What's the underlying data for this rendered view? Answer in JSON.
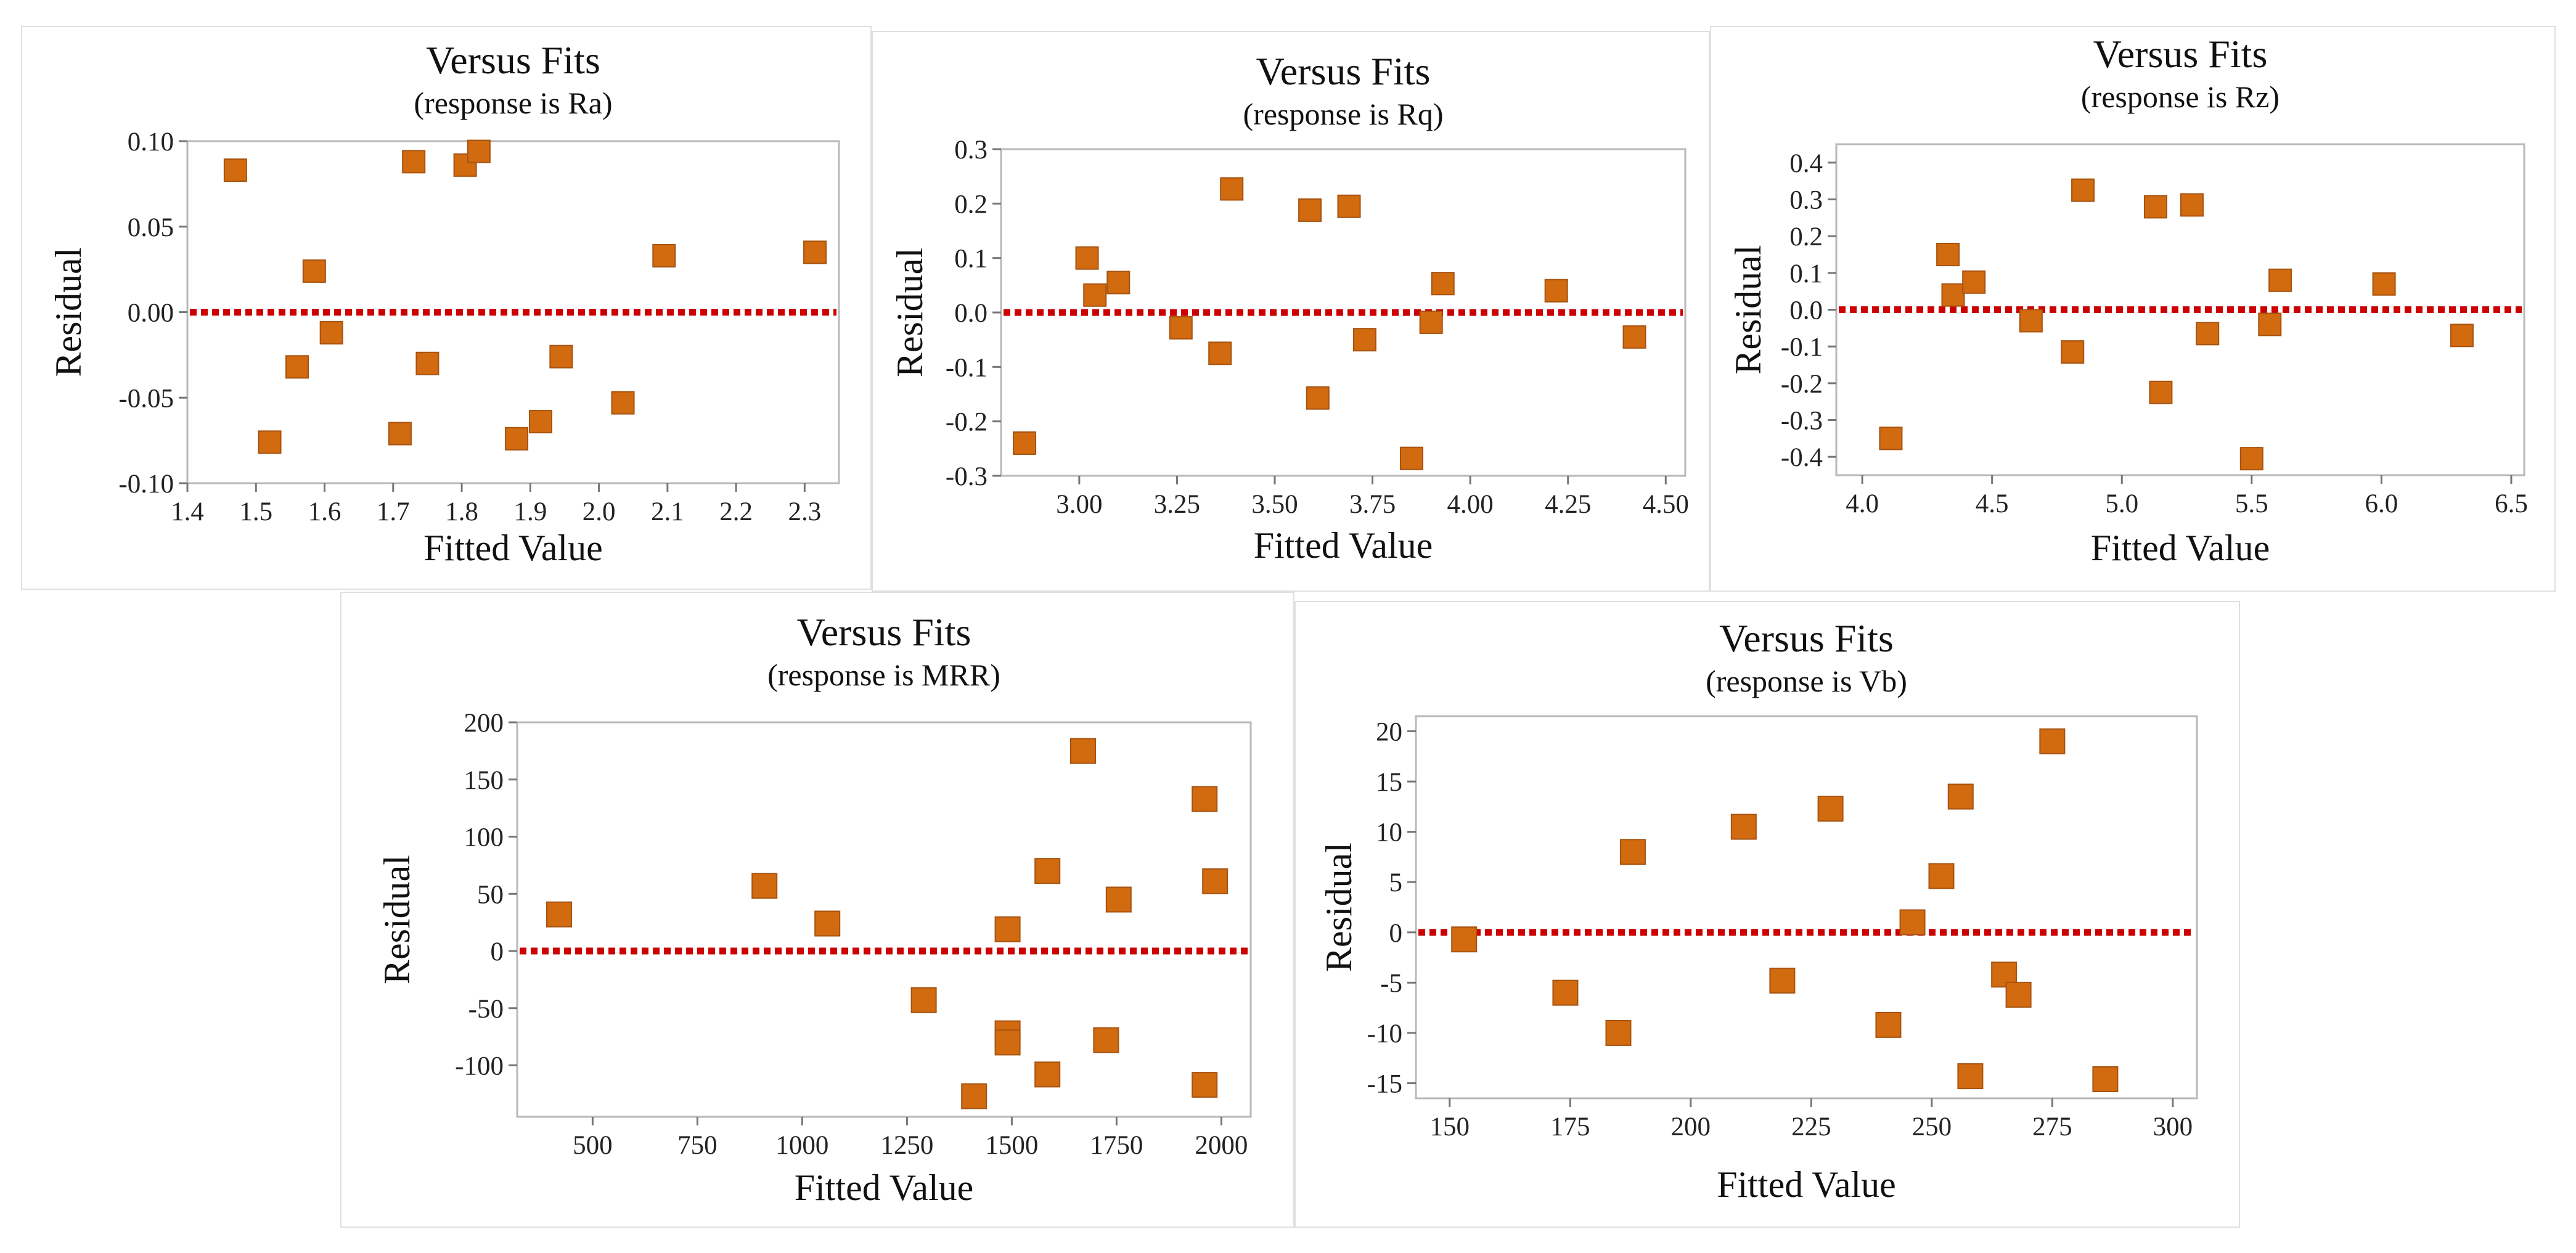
{
  "chart_data": [
    {
      "type": "scatter",
      "title": "Versus Fits",
      "subtitle": "(response is Ra)",
      "xlabel": "Fitted Value",
      "ylabel": "Residual",
      "xlim": [
        1.4,
        2.35
      ],
      "ylim": [
        -0.1,
        0.1
      ],
      "xticks": [
        "1.4",
        "1.5",
        "1.6",
        "1.7",
        "1.8",
        "1.9",
        "2.0",
        "2.1",
        "2.2",
        "2.3"
      ],
      "yticks": [
        "0.10",
        "0.05",
        "0.00",
        "-0.05",
        "-0.10"
      ],
      "reference_line_y": 0,
      "marker_color": "#d26a10",
      "reference_line_color": "#cc0000",
      "points": [
        {
          "x": 1.47,
          "y": 0.083
        },
        {
          "x": 1.52,
          "y": -0.076
        },
        {
          "x": 1.56,
          "y": -0.032
        },
        {
          "x": 1.585,
          "y": 0.024
        },
        {
          "x": 1.61,
          "y": -0.012
        },
        {
          "x": 1.71,
          "y": -0.071
        },
        {
          "x": 1.73,
          "y": 0.088
        },
        {
          "x": 1.75,
          "y": -0.03
        },
        {
          "x": 1.805,
          "y": 0.086
        },
        {
          "x": 1.825,
          "y": 0.094
        },
        {
          "x": 1.88,
          "y": -0.074
        },
        {
          "x": 1.915,
          "y": -0.064
        },
        {
          "x": 1.945,
          "y": -0.026
        },
        {
          "x": 2.035,
          "y": -0.053
        },
        {
          "x": 2.095,
          "y": 0.033
        },
        {
          "x": 2.315,
          "y": 0.035
        }
      ]
    },
    {
      "type": "scatter",
      "title": "Versus Fits",
      "subtitle": "(response is Rq)",
      "xlabel": "Fitted Value",
      "ylabel": "Residual",
      "xlim": [
        2.8,
        4.55
      ],
      "ylim": [
        -0.3,
        0.3
      ],
      "xticks": [
        "3.00",
        "3.25",
        "3.50",
        "3.75",
        "4.00",
        "4.25",
        "4.50"
      ],
      "yticks": [
        "0.3",
        "0.2",
        "0.1",
        "0.0",
        "-0.1",
        "-0.2",
        "-0.3"
      ],
      "reference_line_y": 0,
      "marker_color": "#d26a10",
      "reference_line_color": "#cc0000",
      "points": [
        {
          "x": 2.86,
          "y": -0.24
        },
        {
          "x": 3.02,
          "y": 0.1
        },
        {
          "x": 3.04,
          "y": 0.032
        },
        {
          "x": 3.1,
          "y": 0.055
        },
        {
          "x": 3.26,
          "y": -0.028
        },
        {
          "x": 3.36,
          "y": -0.075
        },
        {
          "x": 3.39,
          "y": 0.227
        },
        {
          "x": 3.59,
          "y": 0.188
        },
        {
          "x": 3.61,
          "y": -0.157
        },
        {
          "x": 3.69,
          "y": 0.195
        },
        {
          "x": 3.73,
          "y": -0.05
        },
        {
          "x": 3.85,
          "y": -0.268
        },
        {
          "x": 3.9,
          "y": -0.018
        },
        {
          "x": 3.93,
          "y": 0.053
        },
        {
          "x": 4.22,
          "y": 0.04
        },
        {
          "x": 4.42,
          "y": -0.045
        }
      ]
    },
    {
      "type": "scatter",
      "title": "Versus Fits",
      "subtitle": "(response is Rz)",
      "xlabel": "Fitted Value",
      "ylabel": "Residual",
      "xlim": [
        3.9,
        6.55
      ],
      "ylim": [
        -0.45,
        0.45
      ],
      "xticks": [
        "4.0",
        "4.5",
        "5.0",
        "5.5",
        "6.0",
        "6.5"
      ],
      "yticks": [
        "0.4",
        "0.3",
        "0.2",
        "0.1",
        "0.0",
        "-0.1",
        "-0.2",
        "-0.3",
        "-0.4"
      ],
      "reference_line_y": 0,
      "marker_color": "#d26a10",
      "reference_line_color": "#cc0000",
      "points": [
        {
          "x": 4.11,
          "y": -0.35
        },
        {
          "x": 4.33,
          "y": 0.15
        },
        {
          "x": 4.35,
          "y": 0.04
        },
        {
          "x": 4.43,
          "y": 0.075
        },
        {
          "x": 4.65,
          "y": -0.03
        },
        {
          "x": 4.81,
          "y": -0.115
        },
        {
          "x": 4.85,
          "y": 0.325
        },
        {
          "x": 5.13,
          "y": 0.28
        },
        {
          "x": 5.15,
          "y": -0.225
        },
        {
          "x": 5.27,
          "y": 0.285
        },
        {
          "x": 5.33,
          "y": -0.065
        },
        {
          "x": 5.5,
          "y": -0.405
        },
        {
          "x": 5.57,
          "y": -0.04
        },
        {
          "x": 5.61,
          "y": 0.08
        },
        {
          "x": 6.01,
          "y": 0.07
        },
        {
          "x": 6.31,
          "y": -0.07
        }
      ]
    },
    {
      "type": "scatter",
      "title": "Versus Fits",
      "subtitle": "(response is MRR)",
      "xlabel": "Fitted Value",
      "ylabel": "Residual",
      "xlim": [
        320,
        2070
      ],
      "ylim": [
        -145,
        200
      ],
      "xticks": [
        "500",
        "750",
        "1000",
        "1250",
        "1500",
        "1750",
        "2000"
      ],
      "yticks": [
        "200",
        "150",
        "100",
        "50",
        "0",
        "-50",
        "-100"
      ],
      "reference_line_y": 0,
      "marker_color": "#d26a10",
      "reference_line_color": "#cc0000",
      "points": [
        {
          "x": 420,
          "y": 32
        },
        {
          "x": 910,
          "y": 57
        },
        {
          "x": 1060,
          "y": 24
        },
        {
          "x": 1290,
          "y": -43
        },
        {
          "x": 1410,
          "y": -127
        },
        {
          "x": 1490,
          "y": 19
        },
        {
          "x": 1490,
          "y": -72
        },
        {
          "x": 1490,
          "y": -80
        },
        {
          "x": 1585,
          "y": 70
        },
        {
          "x": 1585,
          "y": -108
        },
        {
          "x": 1670,
          "y": 175
        },
        {
          "x": 1725,
          "y": -78
        },
        {
          "x": 1755,
          "y": 45
        },
        {
          "x": 1960,
          "y": 133
        },
        {
          "x": 1960,
          "y": -117
        },
        {
          "x": 1985,
          "y": 61
        }
      ]
    },
    {
      "type": "scatter",
      "title": "Versus Fits",
      "subtitle": "(response is Vb)",
      "xlabel": "Fitted Value",
      "ylabel": "Residual",
      "xlim": [
        143,
        305
      ],
      "ylim": [
        -16.5,
        21.5
      ],
      "xticks": [
        "150",
        "175",
        "200",
        "225",
        "250",
        "275",
        "300"
      ],
      "yticks": [
        "20",
        "15",
        "10",
        "5",
        "0",
        "-5",
        "-10",
        "-15"
      ],
      "reference_line_y": 0,
      "marker_color": "#d26a10",
      "reference_line_color": "#cc0000",
      "points": [
        {
          "x": 153,
          "y": -0.7
        },
        {
          "x": 174,
          "y": -6
        },
        {
          "x": 185,
          "y": -10
        },
        {
          "x": 188,
          "y": 8
        },
        {
          "x": 211,
          "y": 10.5
        },
        {
          "x": 219,
          "y": -4.8
        },
        {
          "x": 229,
          "y": 12.3
        },
        {
          "x": 241,
          "y": -9.2
        },
        {
          "x": 246,
          "y": 1
        },
        {
          "x": 252,
          "y": 5.6
        },
        {
          "x": 256,
          "y": 13.5
        },
        {
          "x": 258,
          "y": -14.3
        },
        {
          "x": 265,
          "y": -4.2
        },
        {
          "x": 268,
          "y": -6.2
        },
        {
          "x": 275,
          "y": 19
        },
        {
          "x": 286,
          "y": -14.6
        }
      ]
    }
  ]
}
